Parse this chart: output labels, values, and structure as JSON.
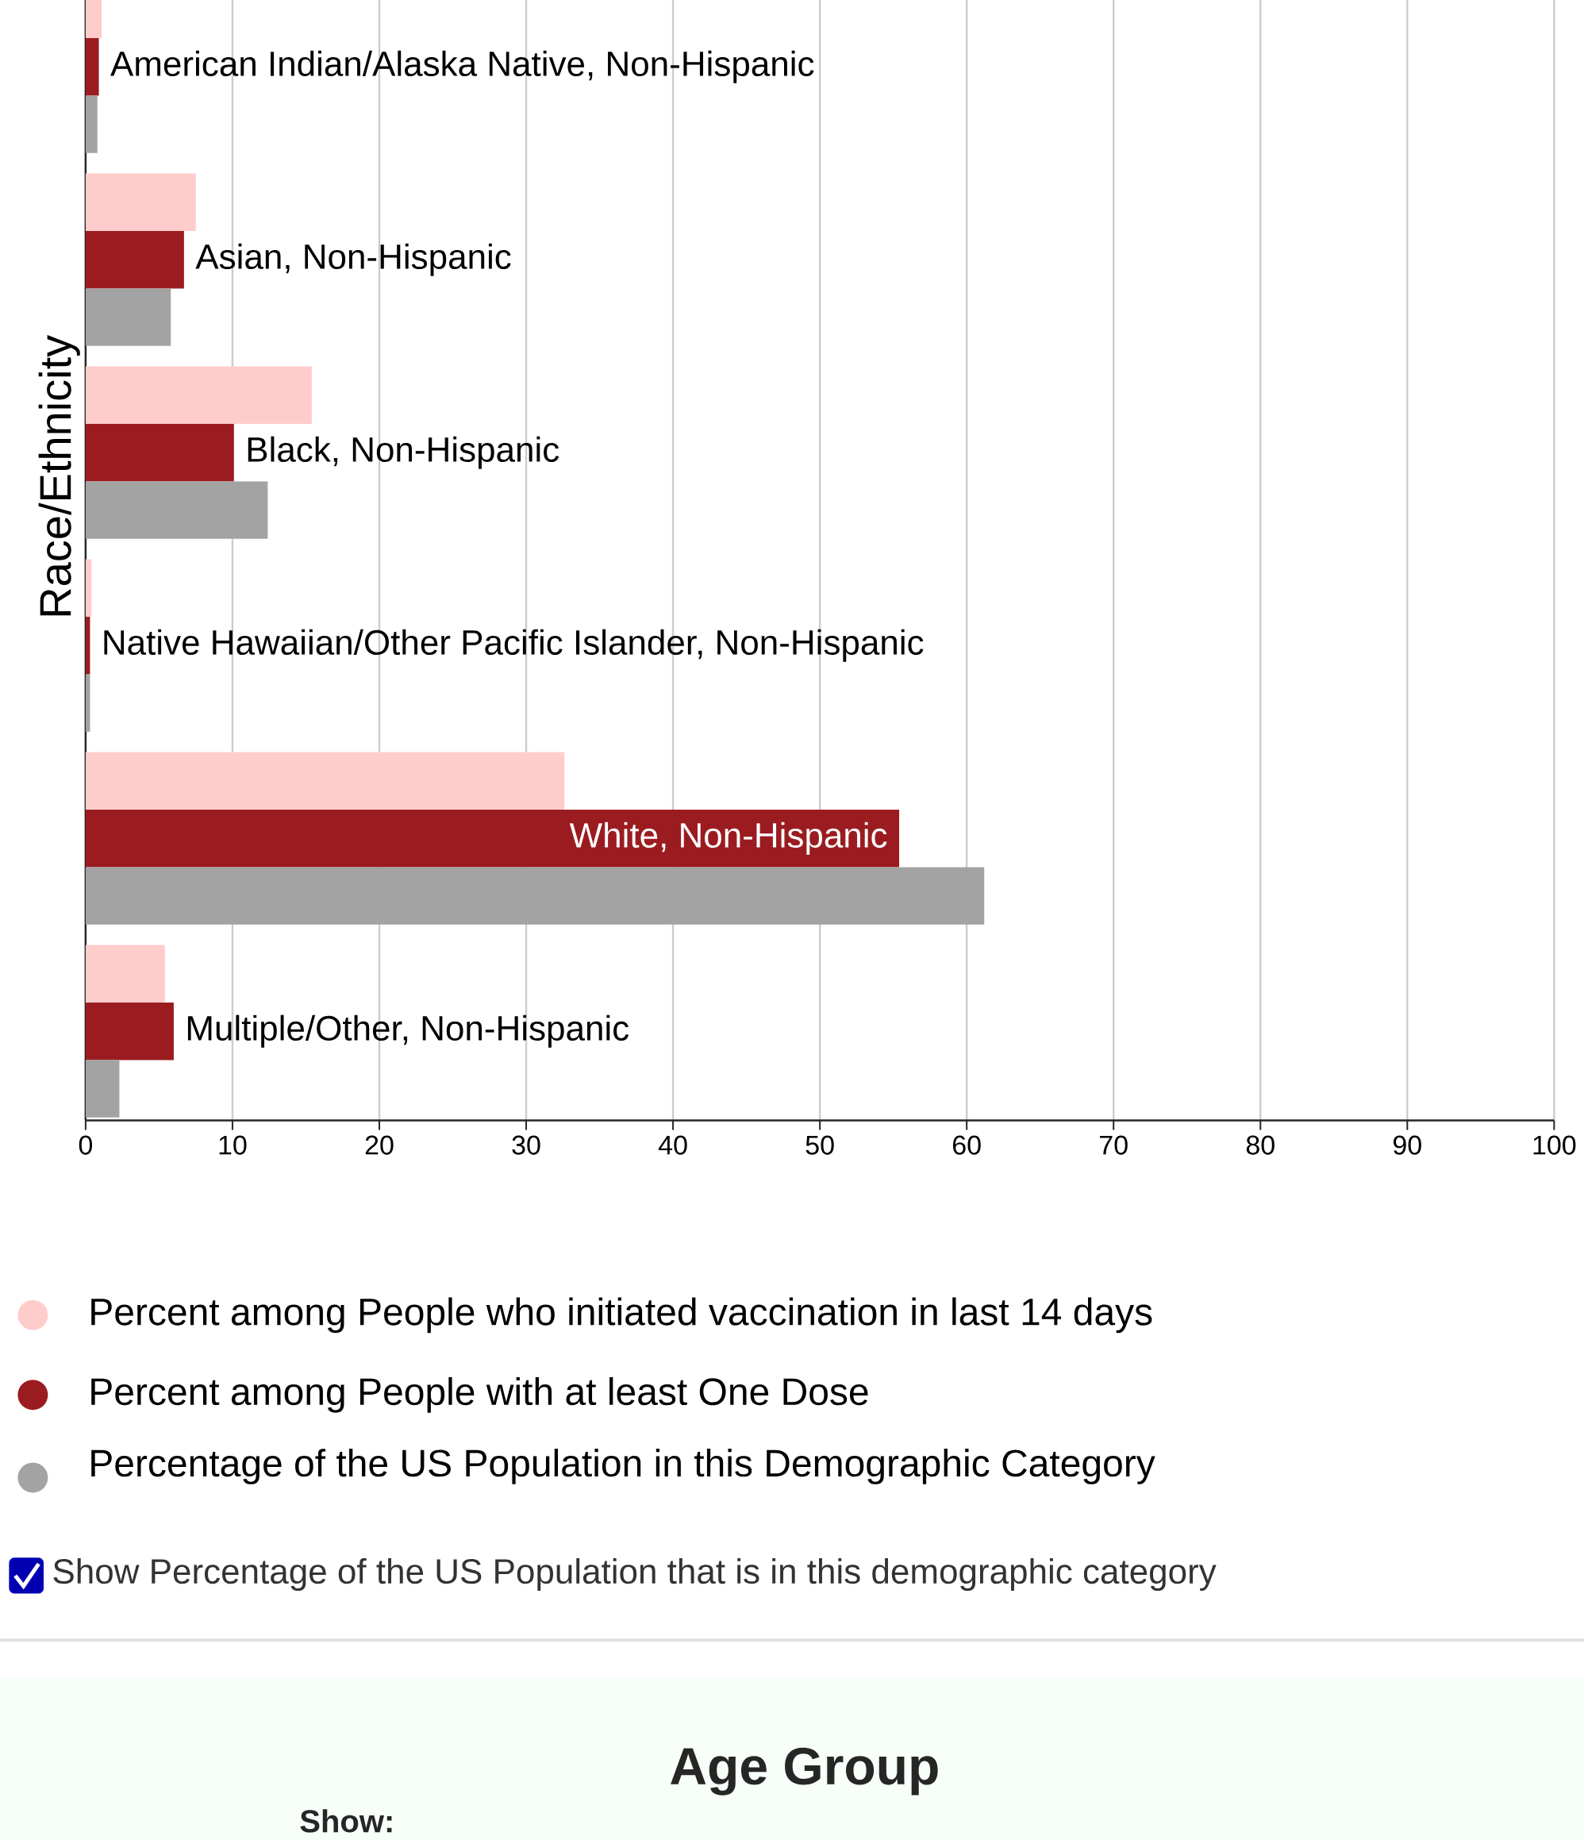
{
  "chart_data": {
    "type": "bar",
    "orientation": "horizontal",
    "ylabel": "Race/Ethnicity",
    "categories": [
      "American Indian/Alaska Native, Non-Hispanic",
      "Asian, Non-Hispanic",
      "Black, Non-Hispanic",
      "Native Hawaiian/Other Pacific Islander, Non-Hispanic",
      "White, Non-Hispanic",
      "Multiple/Other, Non-Hispanic"
    ],
    "series": [
      {
        "name": "Percent among People who initiated vaccination in last 14 days",
        "color": "#ffcccc",
        "values": [
          1.1,
          7.5,
          15.4,
          0.4,
          32.6,
          5.4
        ]
      },
      {
        "name": "Percent among People with at least One Dose",
        "color": "#9b1c20",
        "values": [
          0.9,
          6.7,
          10.1,
          0.3,
          55.4,
          6.0
        ]
      },
      {
        "name": "Percentage of the US Population in this Demographic Category",
        "color": "#a3a3a3",
        "values": [
          0.8,
          5.8,
          12.4,
          0.3,
          61.2,
          2.3
        ]
      }
    ],
    "xlim": [
      0,
      100
    ],
    "xticks": [
      0,
      10,
      20,
      30,
      40,
      50,
      60,
      70,
      80,
      90,
      100
    ],
    "grid": "x",
    "legend": "bottom",
    "annotations": [
      "Show Percentage of the US Population that is in this demographic category",
      "Age Group",
      "Show:"
    ]
  }
}
